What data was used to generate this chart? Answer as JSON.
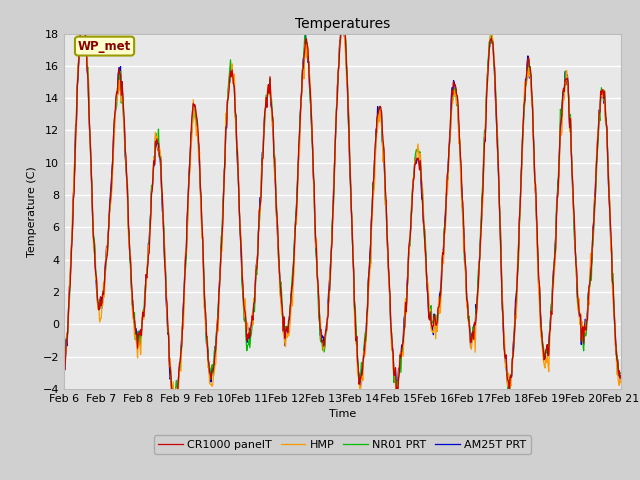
{
  "title": "Temperatures",
  "xlabel": "Time",
  "ylabel": "Temperature (C)",
  "ylim": [
    -4,
    18
  ],
  "annotation_text": "WP_met",
  "annotation_bg": "#ffffcc",
  "annotation_fg": "#880000",
  "annotation_border": "#999900",
  "colors": {
    "CR1000": "#cc0000",
    "HMP": "#ff9900",
    "NR01": "#00bb00",
    "AM25T": "#0000cc"
  },
  "legend_labels": [
    "CR1000 panelT",
    "HMP",
    "NR01 PRT",
    "AM25T PRT"
  ],
  "x_tick_labels": [
    "Feb 6",
    "Feb 7",
    "Feb 8",
    "Feb 9",
    "Feb 10",
    "Feb 11",
    "Feb 12",
    "Feb 13",
    "Feb 14",
    "Feb 15",
    "Feb 16",
    "Feb 17",
    "Feb 18",
    "Feb 19",
    "Feb 20",
    "Feb 21"
  ],
  "figsize": [
    6.4,
    4.8
  ],
  "dpi": 100
}
